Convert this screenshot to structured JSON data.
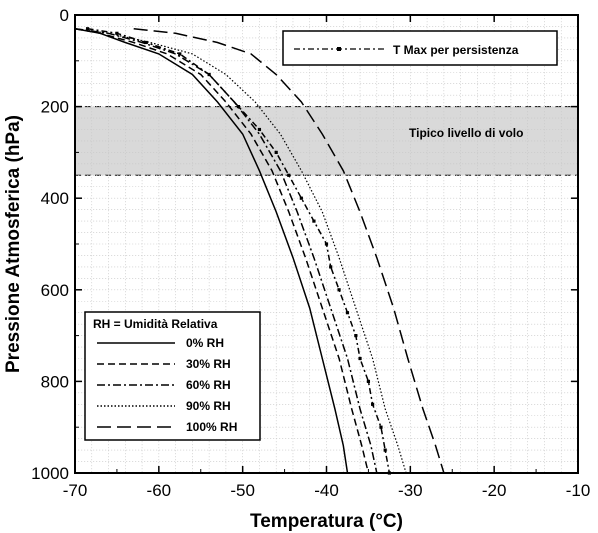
{
  "chart_data": {
    "type": "line",
    "xlabel": "Temperatura (°C)",
    "ylabel": "Pressione Atmosferica (hPa)",
    "xlim": [
      -70,
      -10
    ],
    "ylim": [
      0,
      1000
    ],
    "y_inverted": true,
    "x_ticks": [
      -70,
      -60,
      -50,
      -40,
      -30,
      -20,
      -10
    ],
    "y_ticks": [
      0,
      200,
      400,
      600,
      800,
      1000
    ],
    "grid": true,
    "band": {
      "label": "Tipico livello di volo",
      "from": 200,
      "to": 350,
      "color": "#d9d9d9"
    },
    "legend_title": "RH = Umidità Relativa",
    "legend_placement": "bottom-left",
    "series": [
      {
        "name": "0% RH",
        "dash": "solid",
        "points": [
          [
            -70,
            30
          ],
          [
            -67,
            40
          ],
          [
            -64,
            60
          ],
          [
            -60,
            85
          ],
          [
            -56,
            130
          ],
          [
            -53,
            190
          ],
          [
            -50,
            260
          ],
          [
            -48,
            340
          ],
          [
            -46,
            430
          ],
          [
            -44,
            530
          ],
          [
            -42,
            640
          ],
          [
            -40.5,
            750
          ],
          [
            -39,
            860
          ],
          [
            -38,
            940
          ],
          [
            -37.5,
            1000
          ]
        ]
      },
      {
        "name": "30% RH",
        "dash": "dashed",
        "points": [
          [
            -70,
            30
          ],
          [
            -67,
            40
          ],
          [
            -63,
            60
          ],
          [
            -59,
            85
          ],
          [
            -55,
            130
          ],
          [
            -52,
            190
          ],
          [
            -49,
            260
          ],
          [
            -46.5,
            340
          ],
          [
            -44.5,
            430
          ],
          [
            -42.5,
            530
          ],
          [
            -40.5,
            640
          ],
          [
            -38.5,
            750
          ],
          [
            -37,
            860
          ],
          [
            -35.8,
            940
          ],
          [
            -35,
            1000
          ]
        ]
      },
      {
        "name": "60% RH",
        "dash": "dashdot",
        "points": [
          [
            -70,
            30
          ],
          [
            -66,
            40
          ],
          [
            -62,
            60
          ],
          [
            -58,
            85
          ],
          [
            -54,
            130
          ],
          [
            -51,
            190
          ],
          [
            -48,
            260
          ],
          [
            -45.5,
            340
          ],
          [
            -43.5,
            430
          ],
          [
            -41.5,
            530
          ],
          [
            -39.5,
            640
          ],
          [
            -37.5,
            750
          ],
          [
            -36,
            860
          ],
          [
            -34.7,
            940
          ],
          [
            -34,
            1000
          ]
        ]
      },
      {
        "name": "90% RH",
        "dash": "dotted",
        "points": [
          [
            -70,
            30
          ],
          [
            -66,
            40
          ],
          [
            -61,
            60
          ],
          [
            -56,
            85
          ],
          [
            -52,
            130
          ],
          [
            -48.5,
            190
          ],
          [
            -45.5,
            260
          ],
          [
            -43,
            340
          ],
          [
            -40.5,
            430
          ],
          [
            -38.5,
            530
          ],
          [
            -36.5,
            640
          ],
          [
            -34.5,
            750
          ],
          [
            -33,
            860
          ],
          [
            -31.5,
            940
          ],
          [
            -30.5,
            1000
          ]
        ]
      },
      {
        "name": "100% RH",
        "dash": "longdash",
        "points": [
          [
            -63,
            30
          ],
          [
            -58,
            40
          ],
          [
            -53,
            60
          ],
          [
            -49,
            85
          ],
          [
            -46,
            130
          ],
          [
            -43,
            190
          ],
          [
            -40.5,
            260
          ],
          [
            -38,
            340
          ],
          [
            -36,
            430
          ],
          [
            -34,
            530
          ],
          [
            -32,
            640
          ],
          [
            -30.3,
            750
          ],
          [
            -28.5,
            860
          ],
          [
            -27,
            940
          ],
          [
            -26,
            1000
          ]
        ]
      },
      {
        "name": "T Max per persistenza",
        "dash": "dashdotmarker",
        "legend": "top-right",
        "points": [
          [
            -68.5,
            30
          ],
          [
            -65,
            40
          ],
          [
            -61.5,
            60
          ],
          [
            -57.5,
            85
          ],
          [
            -54,
            130
          ],
          [
            -50.5,
            200
          ],
          [
            -48,
            250
          ],
          [
            -46,
            300
          ],
          [
            -44.5,
            350
          ],
          [
            -43,
            400
          ],
          [
            -41.5,
            450
          ],
          [
            -40,
            500
          ],
          [
            -39.5,
            550
          ],
          [
            -38.5,
            600
          ],
          [
            -37.5,
            650
          ],
          [
            -36.5,
            700
          ],
          [
            -36,
            750
          ],
          [
            -35,
            800
          ],
          [
            -34.5,
            850
          ],
          [
            -33.5,
            900
          ],
          [
            -33,
            950
          ],
          [
            -32.5,
            1000
          ]
        ]
      }
    ]
  }
}
